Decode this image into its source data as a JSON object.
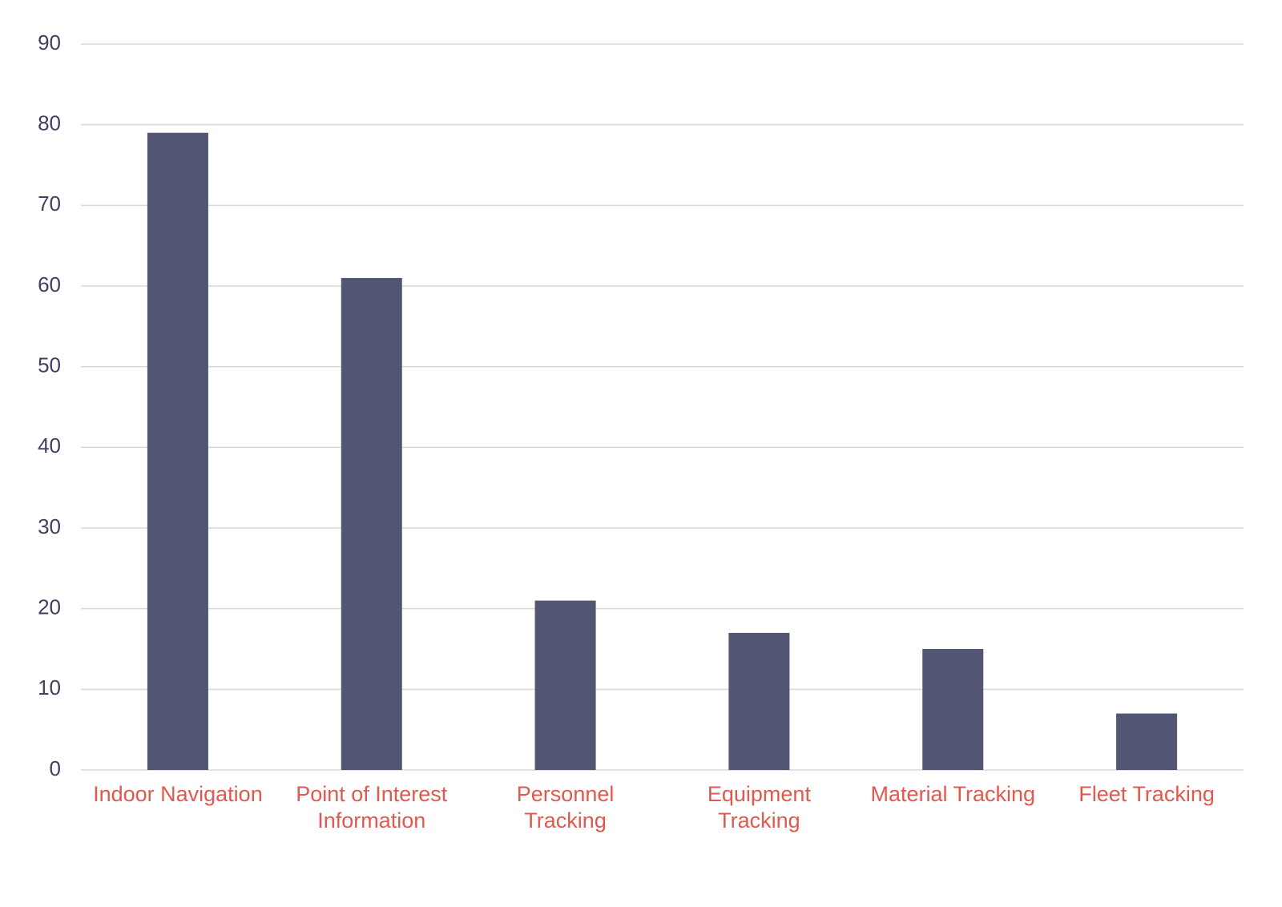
{
  "chart_data": {
    "type": "bar",
    "categories": [
      "Indoor Navigation",
      "Point of Interest Information",
      "Personnel Tracking",
      "Equipment Tracking",
      "Material Tracking",
      "Fleet Tracking"
    ],
    "values": [
      79,
      61,
      21,
      17,
      15,
      7
    ],
    "color": "#525574",
    "ylim": [
      0,
      90
    ],
    "yticks": [
      0,
      10,
      20,
      30,
      40,
      50,
      60,
      70,
      80,
      90
    ],
    "grid": true
  }
}
